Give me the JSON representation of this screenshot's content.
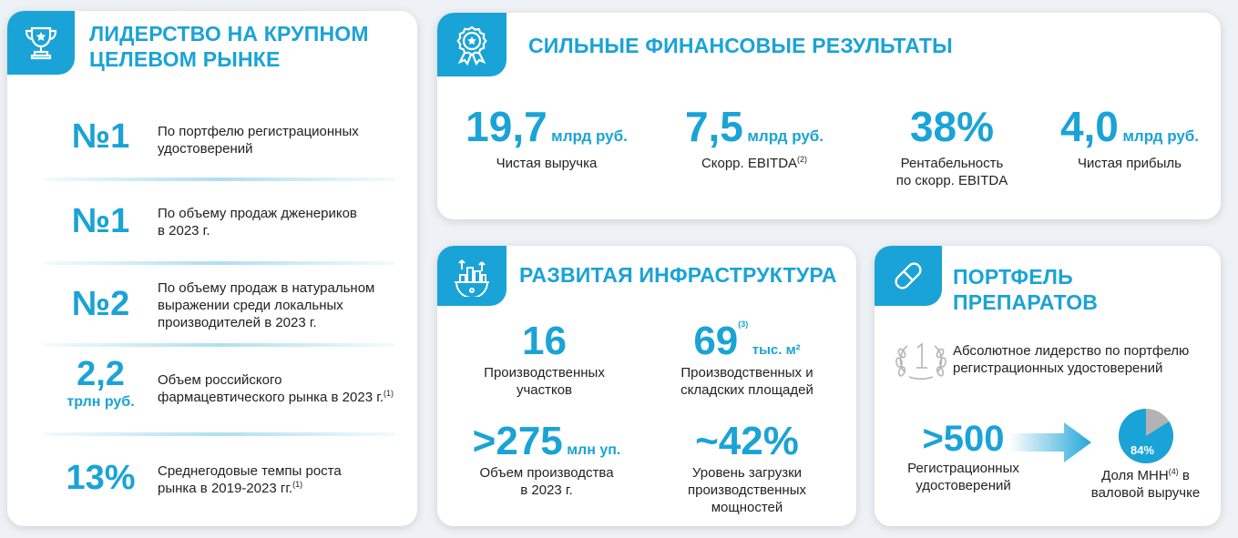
{
  "leadership": {
    "title_line1": "ЛИДЕРСТВО НА КРУПНОМ",
    "title_line2": "ЦЕЛЕВОМ РЫНКЕ",
    "icon": "trophy-icon",
    "items": [
      {
        "value": "№1",
        "text_line1": "По портфелю регистрационных",
        "text_line2": "удостоверений"
      },
      {
        "value": "№1",
        "text_line1": "По объему продаж дженериков",
        "text_line2": "в 2023 г."
      },
      {
        "value": "№2",
        "text_line1": "По объему продаж в натуральном",
        "text_line2": "выражении среди локальных",
        "text_line3": "производителей в 2023 г."
      },
      {
        "value": "2,2",
        "unit": "трлн руб.",
        "text_line1": "Объем российского",
        "text_line2": "фармацевтического рынка в 2023 г.",
        "note": "(1)"
      },
      {
        "value": "13%",
        "text_line1": "Среднегодовые темпы роста",
        "text_line2": "рынка в 2019-2023 гг.",
        "note": "(1)"
      }
    ]
  },
  "financial": {
    "title": "СИЛЬНЫЕ ФИНАНСОВЫЕ РЕЗУЛЬТАТЫ",
    "icon": "medal-icon",
    "metrics": [
      {
        "value": "19,7",
        "unit": "млрд руб.",
        "label": "Чистая выручка"
      },
      {
        "value": "7,5",
        "unit": "млрд руб.",
        "label": "Скорр. EBITDA",
        "note": "(2)"
      },
      {
        "value": "38%",
        "label_line1": "Рентабельность",
        "label_line2": "по скорр. EBITDA"
      },
      {
        "value": "4,0",
        "unit": "млрд руб.",
        "label": "Чистая прибыль"
      }
    ]
  },
  "infrastructure": {
    "title": "РАЗВИТАЯ ИНФРАСТРУКТУРА",
    "icon": "factory-icon",
    "metrics": [
      {
        "value": "16",
        "label_line1": "Производственных",
        "label_line2": "участков"
      },
      {
        "value": "69",
        "note": "(3)",
        "unit": "тыс. м²",
        "label_line1": "Производственных и",
        "label_line2": "складских площадей"
      },
      {
        "value": ">275",
        "unit": "млн уп.",
        "label_line1": "Объем производства",
        "label_line2": "в 2023 г."
      },
      {
        "value": "~42%",
        "label_line1": "Уровень загрузки",
        "label_line2": "производственных",
        "label_line3": "мощностей"
      }
    ]
  },
  "portfolio": {
    "title": "ПОРТФЕЛЬ ПРЕПАРАТОВ",
    "icon": "pill-icon",
    "laurel_icon": "laurel-number-one-icon",
    "leadership_line1": "Абсолютное лидерство по портфелю",
    "leadership_line2": "регистрационных удостоверений",
    "count_value": ">500",
    "count_label_line1": "Регистрационных",
    "count_label_line2": "удостоверений",
    "share_value": "84%",
    "share_fraction": 0.84,
    "share_label_line1": "Доля МНН",
    "share_note": "(4)",
    "share_label_line1_end": " в",
    "share_label_line2": "валовой выручке"
  },
  "colors": {
    "accent": "#1aa3d6",
    "pie_rest": "#b3b3b3"
  }
}
